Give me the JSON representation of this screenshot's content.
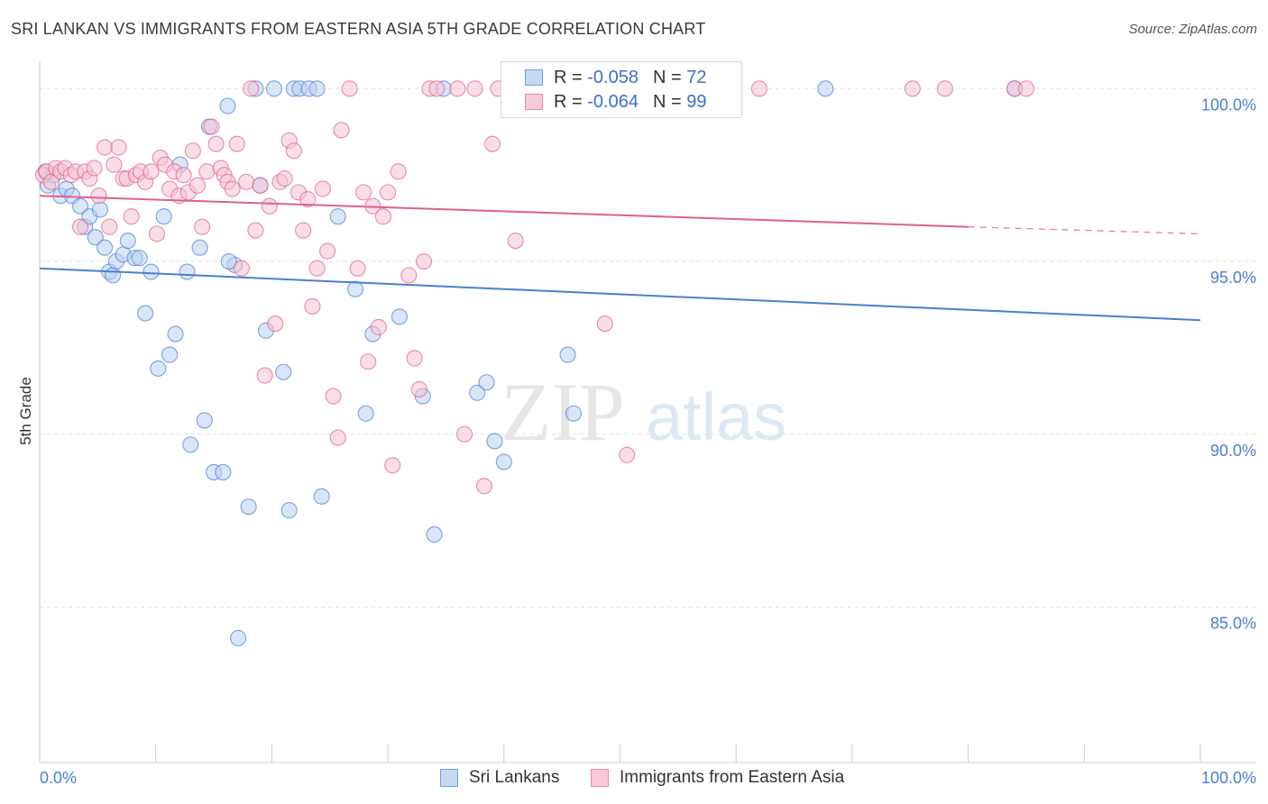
{
  "title": "SRI LANKAN VS IMMIGRANTS FROM EASTERN ASIA 5TH GRADE CORRELATION CHART",
  "source": "Source: ZipAtlas.com",
  "watermark": {
    "zip": "ZIP",
    "atlas": "atlas"
  },
  "legend": {
    "r_label": "R =",
    "n_label": "N =",
    "rows": [
      {
        "r": "-0.058",
        "n": "72",
        "color": "#6f9fe0",
        "fill": "#c5d8f4"
      },
      {
        "r": "-0.064",
        "n": "99",
        "color": "#ee88aa",
        "fill": "#f8cad8"
      }
    ]
  },
  "bottom_legend": [
    "Sri Lankans",
    "Immigrants from Eastern Asia"
  ],
  "chart_data": {
    "type": "scatter",
    "title": "SRI LANKAN VS IMMIGRANTS FROM EASTERN ASIA 5TH GRADE CORRELATION CHART",
    "xlabel": "",
    "ylabel": "5th Grade",
    "xlim": [
      0,
      100
    ],
    "ylim": [
      80.5,
      101
    ],
    "x_tick_labels": [
      "0.0%",
      "100.0%"
    ],
    "y_ticks": [
      {
        "value": 100,
        "label": "100.0%"
      },
      {
        "value": 95,
        "label": "95.0%"
      },
      {
        "value": 90,
        "label": "90.0%"
      },
      {
        "value": 85,
        "label": "85.0%"
      }
    ],
    "grid": true,
    "legend_position": "top-center",
    "series": [
      {
        "name": "Sri Lankans",
        "color": "#4a7fd0",
        "point_fill": "#b9d0f2",
        "trend": {
          "x": [
            0,
            100
          ],
          "y": [
            94.8,
            93.3
          ]
        },
        "points": [
          [
            0.5,
            97.6
          ],
          [
            0.7,
            97.2
          ],
          [
            1.2,
            97.5
          ],
          [
            1.8,
            96.9
          ],
          [
            2.3,
            97.1
          ],
          [
            2.8,
            96.9
          ],
          [
            3.5,
            96.6
          ],
          [
            3.9,
            96.0
          ],
          [
            4.3,
            96.3
          ],
          [
            4.8,
            95.7
          ],
          [
            5.2,
            96.5
          ],
          [
            5.6,
            95.4
          ],
          [
            6.0,
            94.7
          ],
          [
            6.3,
            94.6
          ],
          [
            6.6,
            95.0
          ],
          [
            7.2,
            95.2
          ],
          [
            7.6,
            95.6
          ],
          [
            8.2,
            95.1
          ],
          [
            8.6,
            95.1
          ],
          [
            9.1,
            93.5
          ],
          [
            9.6,
            94.7
          ],
          [
            10.2,
            91.9
          ],
          [
            10.7,
            96.3
          ],
          [
            11.2,
            92.3
          ],
          [
            11.7,
            92.9
          ],
          [
            12.1,
            97.8
          ],
          [
            12.7,
            94.7
          ],
          [
            13.0,
            89.7
          ],
          [
            13.8,
            95.4
          ],
          [
            14.2,
            90.4
          ],
          [
            14.6,
            98.9
          ],
          [
            15.0,
            88.9
          ],
          [
            15.8,
            88.9
          ],
          [
            16.2,
            99.5
          ],
          [
            16.8,
            94.9
          ],
          [
            17.1,
            84.1
          ],
          [
            18.0,
            87.9
          ],
          [
            18.6,
            100.0
          ],
          [
            19.0,
            97.2
          ],
          [
            19.5,
            93.0
          ],
          [
            20.2,
            100.0
          ],
          [
            21.0,
            91.8
          ],
          [
            21.5,
            87.8
          ],
          [
            21.9,
            100.0
          ],
          [
            22.4,
            100.0
          ],
          [
            23.2,
            100.0
          ],
          [
            23.9,
            100.0
          ],
          [
            24.3,
            88.2
          ],
          [
            25.7,
            96.3
          ],
          [
            27.2,
            94.2
          ],
          [
            28.1,
            90.6
          ],
          [
            28.7,
            92.9
          ],
          [
            31.0,
            93.4
          ],
          [
            33.0,
            91.1
          ],
          [
            34.0,
            87.1
          ],
          [
            34.8,
            100.0
          ],
          [
            37.7,
            91.2
          ],
          [
            38.5,
            91.5
          ],
          [
            39.2,
            89.8
          ],
          [
            40.0,
            89.2
          ],
          [
            40.6,
            100.0
          ],
          [
            41.5,
            100.0
          ],
          [
            43.3,
            100.0
          ],
          [
            45.0,
            100.0
          ],
          [
            45.5,
            92.3
          ],
          [
            46.0,
            90.6
          ],
          [
            48.5,
            100.0
          ],
          [
            50.0,
            100.0
          ],
          [
            53.0,
            100.0
          ],
          [
            67.7,
            100.0
          ],
          [
            84.0,
            100.0
          ],
          [
            16.3,
            95.0
          ]
        ]
      },
      {
        "name": "Immigrants from Eastern Asia",
        "color": "#e0608a",
        "point_fill": "#f6c2d3",
        "trend": {
          "x": [
            0,
            80
          ],
          "y": [
            96.9,
            96.0
          ]
        },
        "trend_dashed": {
          "x": [
            80,
            100
          ],
          "y": [
            96.0,
            95.8
          ]
        },
        "points": [
          [
            0.3,
            97.5
          ],
          [
            0.6,
            97.6
          ],
          [
            1.0,
            97.3
          ],
          [
            1.4,
            97.7
          ],
          [
            1.8,
            97.6
          ],
          [
            2.2,
            97.7
          ],
          [
            2.7,
            97.5
          ],
          [
            3.1,
            97.6
          ],
          [
            3.5,
            96.0
          ],
          [
            3.9,
            97.6
          ],
          [
            4.3,
            97.4
          ],
          [
            4.7,
            97.7
          ],
          [
            5.1,
            96.9
          ],
          [
            5.6,
            98.3
          ],
          [
            6.0,
            96.0
          ],
          [
            6.4,
            97.8
          ],
          [
            6.8,
            98.3
          ],
          [
            7.2,
            97.4
          ],
          [
            7.5,
            97.4
          ],
          [
            7.9,
            96.3
          ],
          [
            8.3,
            97.5
          ],
          [
            8.7,
            97.6
          ],
          [
            9.1,
            97.3
          ],
          [
            9.6,
            97.6
          ],
          [
            10.1,
            95.8
          ],
          [
            10.4,
            98.0
          ],
          [
            10.8,
            97.8
          ],
          [
            11.2,
            97.1
          ],
          [
            11.6,
            97.6
          ],
          [
            12.0,
            96.9
          ],
          [
            12.4,
            97.5
          ],
          [
            12.8,
            97.0
          ],
          [
            13.2,
            98.2
          ],
          [
            13.6,
            97.2
          ],
          [
            14.0,
            96.0
          ],
          [
            14.4,
            97.6
          ],
          [
            14.8,
            98.9
          ],
          [
            15.2,
            98.4
          ],
          [
            15.6,
            97.7
          ],
          [
            15.9,
            97.5
          ],
          [
            16.2,
            97.3
          ],
          [
            16.6,
            97.1
          ],
          [
            17.0,
            98.4
          ],
          [
            17.4,
            94.8
          ],
          [
            17.8,
            97.3
          ],
          [
            18.2,
            100.0
          ],
          [
            18.6,
            95.9
          ],
          [
            19.0,
            97.2
          ],
          [
            19.4,
            91.7
          ],
          [
            19.8,
            96.6
          ],
          [
            20.3,
            93.2
          ],
          [
            20.7,
            97.3
          ],
          [
            21.1,
            97.4
          ],
          [
            21.5,
            98.5
          ],
          [
            21.9,
            98.2
          ],
          [
            22.3,
            97.0
          ],
          [
            22.7,
            95.9
          ],
          [
            23.1,
            96.8
          ],
          [
            23.5,
            93.7
          ],
          [
            23.9,
            94.8
          ],
          [
            24.4,
            97.1
          ],
          [
            24.8,
            95.3
          ],
          [
            25.3,
            91.1
          ],
          [
            25.7,
            89.9
          ],
          [
            26.0,
            98.8
          ],
          [
            26.7,
            100.0
          ],
          [
            27.4,
            94.8
          ],
          [
            27.9,
            97.0
          ],
          [
            28.3,
            92.1
          ],
          [
            28.7,
            96.6
          ],
          [
            29.2,
            93.1
          ],
          [
            29.6,
            96.3
          ],
          [
            30.0,
            97.0
          ],
          [
            30.4,
            89.1
          ],
          [
            30.9,
            97.6
          ],
          [
            31.8,
            94.6
          ],
          [
            32.3,
            92.2
          ],
          [
            32.7,
            91.3
          ],
          [
            33.1,
            95.0
          ],
          [
            33.6,
            100.0
          ],
          [
            34.2,
            100.0
          ],
          [
            36.0,
            100.0
          ],
          [
            36.6,
            90.0
          ],
          [
            37.5,
            100.0
          ],
          [
            38.3,
            88.5
          ],
          [
            39.0,
            98.4
          ],
          [
            39.5,
            100.0
          ],
          [
            41.0,
            95.6
          ],
          [
            42.0,
            100.0
          ],
          [
            46.0,
            100.0
          ],
          [
            48.0,
            100.0
          ],
          [
            48.7,
            93.2
          ],
          [
            50.6,
            89.4
          ],
          [
            52.0,
            100.0
          ],
          [
            62.0,
            100.0
          ],
          [
            75.2,
            100.0
          ],
          [
            78.0,
            100.0
          ],
          [
            84.0,
            100.0
          ],
          [
            85.0,
            100.0
          ]
        ]
      }
    ]
  }
}
